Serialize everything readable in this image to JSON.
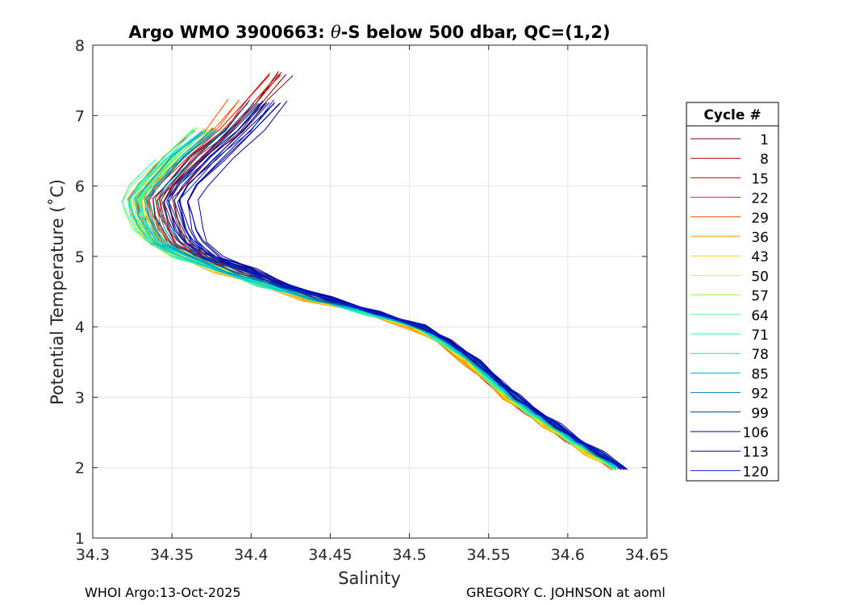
{
  "chart_data": {
    "type": "line",
    "title_prefix": "Argo WMO 3900663: ",
    "title_theta": "θ",
    "title_suffix": "-S below 500 dbar,  QC=(1,2)",
    "xlabel": "Salinity",
    "ylabel": "Potential Temperature (˚C)",
    "xlim": [
      34.3,
      34.65
    ],
    "ylim": [
      1,
      8
    ],
    "xticks": [
      "34.3",
      "34.35",
      "34.4",
      "34.45",
      "34.5",
      "34.55",
      "34.6",
      "34.65"
    ],
    "yticks": [
      "1",
      "2",
      "3",
      "4",
      "5",
      "6",
      "7",
      "8"
    ],
    "grid": true,
    "legend_title": "Cycle #",
    "legend_position": "right",
    "legend_entries": [
      "1",
      "8",
      "15",
      "22",
      "29",
      "36",
      "43",
      "50",
      "57",
      "64",
      "71",
      "78",
      "85",
      "92",
      "99",
      "106",
      "113",
      "120"
    ],
    "legend_colors": [
      "#800000",
      "#b00000",
      "#e00000",
      "#ff2000",
      "#ff5000",
      "#ff8c00",
      "#ffd000",
      "#e0ff10",
      "#a0ff40",
      "#50ff80",
      "#20ffb0",
      "#10e0e0",
      "#00b0d8",
      "#0080b0",
      "#004090",
      "#000070",
      "#0000a0",
      "#0020d0"
    ],
    "base_profile": {
      "theta": [
        7.6,
        7.2,
        6.8,
        6.4,
        6.0,
        5.8,
        5.6,
        5.4,
        5.2,
        5.0,
        4.8,
        4.6,
        4.4,
        4.2,
        4.0,
        3.8,
        3.5,
        3.2,
        3.0,
        2.8,
        2.6,
        2.4,
        2.2,
        2.0
      ],
      "salinity": [
        34.405,
        34.39,
        34.375,
        34.355,
        34.338,
        34.332,
        34.334,
        34.338,
        34.345,
        34.36,
        34.385,
        34.41,
        34.44,
        34.475,
        34.505,
        34.522,
        34.54,
        34.555,
        34.565,
        34.577,
        34.59,
        34.603,
        34.617,
        34.632
      ]
    },
    "cycles": [
      {
        "cycle": 1,
        "ds_upper": 0.016,
        "ds_lower": 0.002,
        "theta_top": 7.6
      },
      {
        "cycle": 8,
        "ds_upper": 0.004,
        "ds_lower": -0.002,
        "theta_top": 7.0
      },
      {
        "cycle": 15,
        "ds_upper": 0.01,
        "ds_lower": -0.003,
        "theta_top": 7.6
      },
      {
        "cycle": 22,
        "ds_upper": -0.004,
        "ds_lower": -0.004,
        "theta_top": 6.9
      },
      {
        "cycle": 29,
        "ds_upper": 0.002,
        "ds_lower": -0.004,
        "theta_top": 7.3
      },
      {
        "cycle": 36,
        "ds_upper": -0.006,
        "ds_lower": -0.005,
        "theta_top": 6.6
      },
      {
        "cycle": 43,
        "ds_upper": -0.002,
        "ds_lower": -0.004,
        "theta_top": 7.1
      },
      {
        "cycle": 50,
        "ds_upper": -0.004,
        "ds_lower": -0.003,
        "theta_top": 6.7
      },
      {
        "cycle": 57,
        "ds_upper": -0.007,
        "ds_lower": -0.002,
        "theta_top": 6.9
      },
      {
        "cycle": 64,
        "ds_upper": -0.003,
        "ds_lower": -0.002,
        "theta_top": 6.8
      },
      {
        "cycle": 71,
        "ds_upper": -0.009,
        "ds_lower": -0.001,
        "theta_top": 6.6
      },
      {
        "cycle": 78,
        "ds_upper": -0.006,
        "ds_lower": 0.0,
        "theta_top": 6.9
      },
      {
        "cycle": 85,
        "ds_upper": -0.002,
        "ds_lower": 0.0,
        "theta_top": 7.1
      },
      {
        "cycle": 92,
        "ds_upper": 0.006,
        "ds_lower": 0.002,
        "theta_top": 7.0
      },
      {
        "cycle": 99,
        "ds_upper": 0.012,
        "ds_lower": 0.003,
        "theta_top": 7.3
      },
      {
        "cycle": 106,
        "ds_upper": 0.022,
        "ds_lower": 0.004,
        "theta_top": 7.2
      },
      {
        "cycle": 113,
        "ds_upper": 0.028,
        "ds_lower": 0.003,
        "theta_top": 7.45
      },
      {
        "cycle": 120,
        "ds_upper": 0.018,
        "ds_lower": 0.003,
        "theta_top": 7.25
      }
    ]
  },
  "footer": {
    "left": "WHOI Argo:13-Oct-2025",
    "right": "GREGORY C. JOHNSON at aoml"
  }
}
